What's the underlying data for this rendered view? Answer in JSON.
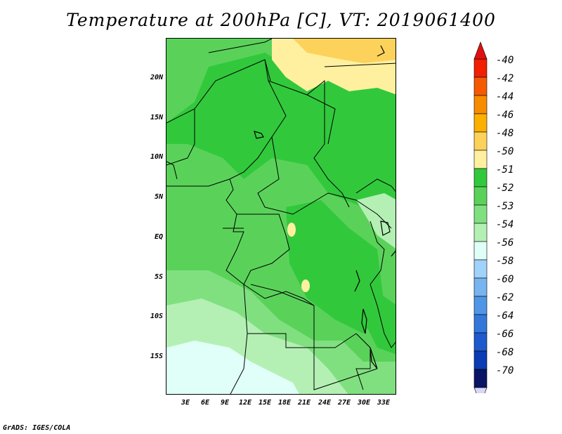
{
  "title": "Temperature at 200hPa [C], VT: 2019061400",
  "lat_labels": [
    "20N",
    "15N",
    "10N",
    "5N",
    "EQ",
    "5S",
    "10S",
    "15S"
  ],
  "lon_labels": [
    "3E",
    "6E",
    "9E",
    "12E",
    "15E",
    "18E",
    "21E",
    "24E",
    "27E",
    "30E",
    "33E"
  ],
  "legend": {
    "labels": [
      "-40",
      "-42",
      "-44",
      "-46",
      "-48",
      "-50",
      "-51",
      "-52",
      "-53",
      "-54",
      "-56",
      "-58",
      "-60",
      "-62",
      "-64",
      "-66",
      "-68",
      "-70"
    ],
    "colors": [
      "#f02000",
      "#f55a00",
      "#f88c00",
      "#fbb000",
      "#fdd25a",
      "#fff0a0",
      "#32c83c",
      "#5ad25a",
      "#80e080",
      "#b4f0b4",
      "#e0fff8",
      "#a0d2fa",
      "#78b4f0",
      "#5096e6",
      "#3278dc",
      "#1e5acd",
      "#0a3cb4",
      "#0a1464"
    ],
    "top_arrow_color": "#e01010",
    "bottom_arrow_color": "#d8d8f8"
  },
  "credit": "GrADS: IGES/COLA"
}
